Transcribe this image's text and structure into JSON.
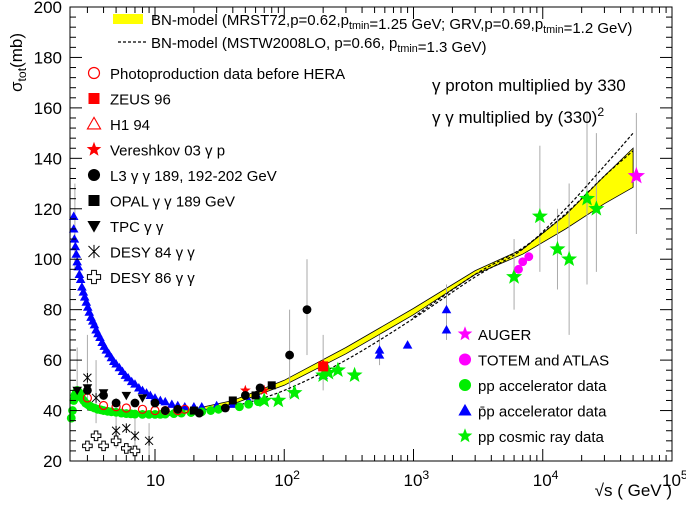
{
  "chart_data": {
    "type": "scatter",
    "xscale": "log",
    "xlim": [
      2.2,
      100000
    ],
    "ylim": [
      20,
      200
    ],
    "xlabel": "√s ( GeV )",
    "ylabel_parts": {
      "main": "σ",
      "sub": "tot",
      "tail": "(mb)"
    },
    "x_ticks": [
      {
        "value": 10,
        "base": "10",
        "exp": ""
      },
      {
        "value": 100,
        "base": "10",
        "exp": "2"
      },
      {
        "value": 1000,
        "base": "10",
        "exp": "3"
      },
      {
        "value": 10000,
        "base": "10",
        "exp": "4"
      },
      {
        "value": 100000,
        "base": "10",
        "exp": "5"
      }
    ],
    "y_ticks": [
      20,
      40,
      60,
      80,
      100,
      120,
      140,
      160,
      180,
      200
    ],
    "grid": false,
    "annotations": [
      {
        "key": "gamma_p",
        "text": "γ proton multiplied by 330"
      },
      {
        "key": "gamma_gamma",
        "prefix": "γ γ multiplied by (330)",
        "sup": "2"
      }
    ],
    "legend_top": [
      {
        "key": "band",
        "parts": [
          {
            "t": "BN-model (MRST72,p=0.62,p"
          },
          {
            "t": "tmin",
            "sub": true
          },
          {
            "t": "=1.25 GeV; GRV,p=0.69,p"
          },
          {
            "t": "tmin",
            "sub": true
          },
          {
            "t": "=1.2 GeV)"
          }
        ]
      },
      {
        "key": "dashed",
        "parts": [
          {
            "t": "BN-model (MSTW2008LO, p=0.66, p"
          },
          {
            "t": "tmin",
            "sub": true
          },
          {
            "t": "=1.3 GeV)"
          }
        ]
      }
    ],
    "legend_left": [
      {
        "marker": "circle-open",
        "color": "#ff0000",
        "label": "Photoproduction data before HERA"
      },
      {
        "marker": "square",
        "color": "#ff0000",
        "label": "ZEUS 96"
      },
      {
        "marker": "triangle-open",
        "color": "#ff0000",
        "label": "H1 94"
      },
      {
        "marker": "star",
        "color": "#ff0000",
        "label": "Vereshkov 03 γ p"
      },
      {
        "marker": "circle",
        "color": "#000000",
        "label": "L3 γ γ  189, 192-202 GeV"
      },
      {
        "marker": "square",
        "color": "#000000",
        "label": "OPAL γ γ 189 GeV"
      },
      {
        "marker": "triangle-down",
        "color": "#000000",
        "label": "TPC γ γ"
      },
      {
        "marker": "xcross",
        "color": "#000000",
        "label": "DESY 84 γ γ"
      },
      {
        "marker": "cross-open",
        "color": "#000000",
        "label": "DESY 86 γ γ"
      }
    ],
    "legend_right": [
      {
        "marker": "star",
        "color": "#ff00ff",
        "label": "AUGER"
      },
      {
        "marker": "circle",
        "color": "#ff00ff",
        "label": "TOTEM and ATLAS"
      },
      {
        "marker": "circle",
        "color": "#00ee00",
        "label": "pp accelerator data"
      },
      {
        "marker": "triangle",
        "color": "#0000ff",
        "label": "p̄p accelerator data"
      },
      {
        "marker": "star",
        "color": "#00ee00",
        "label": "pp cosmic ray data"
      }
    ],
    "series": [
      {
        "key": "band_low",
        "values": [
          [
            3,
            40.5
          ],
          [
            5,
            38.6
          ],
          [
            10,
            38.1
          ],
          [
            20,
            39.5
          ],
          [
            40,
            42.6
          ],
          [
            100,
            50
          ],
          [
            300,
            62.5
          ],
          [
            1000,
            78
          ],
          [
            3000,
            94
          ],
          [
            7000,
            102
          ],
          [
            15000,
            112
          ],
          [
            30000,
            122
          ],
          [
            50000,
            128.5
          ]
        ]
      },
      {
        "key": "band_high",
        "values": [
          [
            3,
            41.2
          ],
          [
            5,
            39.3
          ],
          [
            10,
            38.9
          ],
          [
            20,
            40.6
          ],
          [
            40,
            44
          ],
          [
            100,
            52
          ],
          [
            300,
            65
          ],
          [
            1000,
            80.5
          ],
          [
            3000,
            95.5
          ],
          [
            7000,
            104
          ],
          [
            15000,
            117.5
          ],
          [
            30000,
            133
          ],
          [
            50000,
            144
          ]
        ]
      },
      {
        "key": "mstw",
        "values": [
          [
            3,
            40.3
          ],
          [
            5,
            38.6
          ],
          [
            10,
            38
          ],
          [
            20,
            39
          ],
          [
            40,
            41.6
          ],
          [
            100,
            48
          ],
          [
            300,
            60
          ],
          [
            1000,
            76.5
          ],
          [
            3000,
            93
          ],
          [
            7000,
            104
          ],
          [
            15000,
            120
          ],
          [
            30000,
            137
          ],
          [
            50000,
            150
          ]
        ]
      },
      {
        "key": "mstw_b",
        "values": [
          [
            1000,
            77
          ],
          [
            3000,
            94
          ],
          [
            7000,
            104.5
          ],
          [
            15000,
            118
          ],
          [
            30000,
            133
          ],
          [
            50000,
            143
          ]
        ]
      },
      {
        "key": "ppbar",
        "marker": "triangle",
        "color": "#0000ff",
        "points": [
          [
            2.35,
            117
          ],
          [
            2.35,
            112
          ],
          [
            2.38,
            108
          ],
          [
            2.42,
            105
          ],
          [
            2.46,
            102
          ],
          [
            2.5,
            99
          ],
          [
            2.55,
            97
          ],
          [
            2.6,
            94
          ],
          [
            2.66,
            92
          ],
          [
            2.72,
            89
          ],
          [
            2.79,
            87
          ],
          [
            2.86,
            85
          ],
          [
            2.94,
            83
          ],
          [
            3.02,
            81
          ],
          [
            3.1,
            79
          ],
          [
            3.2,
            77
          ],
          [
            3.3,
            75.5
          ],
          [
            3.4,
            74
          ],
          [
            3.5,
            72
          ],
          [
            3.62,
            70.5
          ],
          [
            3.75,
            69
          ],
          [
            3.9,
            67
          ],
          [
            4.05,
            65.5
          ],
          [
            4.2,
            64
          ],
          [
            4.4,
            62.5
          ],
          [
            4.6,
            61
          ],
          [
            4.8,
            59.5
          ],
          [
            5.0,
            58.5
          ],
          [
            5.3,
            57
          ],
          [
            5.6,
            55.5
          ],
          [
            5.9,
            54
          ],
          [
            6.2,
            53
          ],
          [
            6.6,
            51.5
          ],
          [
            7.0,
            50.5
          ],
          [
            7.5,
            49
          ],
          [
            8.0,
            48
          ],
          [
            8.6,
            47
          ],
          [
            9.2,
            46
          ],
          [
            10,
            45
          ],
          [
            11,
            44
          ],
          [
            12,
            43.5
          ],
          [
            13.5,
            42.5
          ],
          [
            15,
            42
          ],
          [
            17,
            41.5
          ],
          [
            20,
            41.5
          ],
          [
            23,
            41.5
          ],
          [
            30,
            42
          ],
          [
            40,
            42.5
          ],
          [
            53,
            44
          ],
          [
            63,
            45
          ],
          [
            200,
            54
          ],
          [
            546,
            62
          ],
          [
            546,
            64
          ],
          [
            900,
            66
          ],
          [
            1800,
            80
          ],
          [
            1800,
            72
          ]
        ]
      },
      {
        "key": "pp_acc",
        "marker": "circle",
        "color": "#00ee00",
        "points": [
          [
            2.25,
            37
          ],
          [
            2.3,
            40
          ],
          [
            2.35,
            44
          ],
          [
            2.4,
            46
          ],
          [
            2.45,
            47
          ],
          [
            2.5,
            48
          ],
          [
            2.55,
            47.5
          ],
          [
            2.6,
            47
          ],
          [
            2.65,
            46
          ],
          [
            2.7,
            45
          ],
          [
            2.8,
            44
          ],
          [
            2.9,
            43
          ],
          [
            3.0,
            42.5
          ],
          [
            3.1,
            42
          ],
          [
            3.2,
            41.5
          ],
          [
            3.4,
            41
          ],
          [
            3.6,
            40.5
          ],
          [
            3.8,
            40.3
          ],
          [
            4.0,
            40
          ],
          [
            4.3,
            39.7
          ],
          [
            4.6,
            39.5
          ],
          [
            5.0,
            39.3
          ],
          [
            5.5,
            39
          ],
          [
            6.0,
            38.8
          ],
          [
            6.5,
            38.7
          ],
          [
            7.0,
            38.6
          ],
          [
            8.0,
            38.5
          ],
          [
            9.0,
            38.5
          ],
          [
            10,
            38.5
          ],
          [
            11,
            38.5
          ],
          [
            12,
            38.6
          ],
          [
            14,
            38.8
          ],
          [
            16,
            39
          ],
          [
            19,
            39.2
          ],
          [
            23,
            39.5
          ],
          [
            27,
            40
          ],
          [
            31,
            40.5
          ],
          [
            45,
            41.5
          ],
          [
            53,
            42.5
          ],
          [
            63,
            43.5
          ]
        ]
      },
      {
        "key": "pp_cosmic",
        "marker": "star",
        "color": "#00ee00",
        "points": [
          [
            70,
            44
          ],
          [
            90,
            44
          ],
          [
            120,
            47
          ],
          [
            200,
            54
          ],
          [
            220,
            55
          ],
          [
            260,
            56
          ],
          [
            350,
            54
          ],
          [
            6000,
            93
          ],
          [
            9500,
            117
          ],
          [
            13000,
            104
          ],
          [
            16000,
            100
          ],
          [
            22000,
            124
          ],
          [
            26000,
            120
          ]
        ]
      },
      {
        "key": "totem",
        "marker": "circle",
        "color": "#ff00ff",
        "points": [
          [
            6500,
            96
          ],
          [
            7000,
            99
          ],
          [
            7800,
            101
          ]
        ]
      },
      {
        "key": "auger",
        "marker": "star",
        "color": "#ff00ff",
        "points": [
          [
            53000,
            133
          ]
        ]
      },
      {
        "key": "zeus",
        "marker": "square",
        "color": "#ff0000",
        "points": [
          [
            200,
            57.5
          ]
        ]
      },
      {
        "key": "h1",
        "marker": "triangle-open",
        "color": "#ff0000",
        "points": [
          [
            200,
            58
          ]
        ]
      },
      {
        "key": "photo_pre",
        "marker": "circle-open",
        "color": "#ff0000",
        "points": [
          [
            3,
            45
          ],
          [
            4,
            42
          ],
          [
            5,
            41.5
          ],
          [
            6,
            41
          ],
          [
            8,
            40.5
          ],
          [
            10,
            40
          ],
          [
            12,
            40
          ],
          [
            15,
            40
          ],
          [
            17,
            40.5
          ]
        ]
      },
      {
        "key": "vereshkov",
        "marker": "star",
        "color": "#ff0000",
        "points": [
          [
            50,
            48
          ],
          [
            70,
            48
          ]
        ]
      },
      {
        "key": "l3",
        "marker": "circle",
        "color": "#000000",
        "points": [
          [
            3,
            48
          ],
          [
            4,
            46
          ],
          [
            5,
            43
          ],
          [
            7,
            43
          ],
          [
            10,
            43
          ],
          [
            12,
            40
          ],
          [
            15,
            40.5
          ],
          [
            22,
            39
          ],
          [
            35,
            41
          ],
          [
            50,
            46
          ],
          [
            65,
            49
          ],
          [
            110,
            62
          ],
          [
            150,
            80
          ]
        ]
      },
      {
        "key": "opal",
        "marker": "square",
        "color": "#000000",
        "points": [
          [
            20,
            40
          ],
          [
            40,
            44
          ],
          [
            60,
            46
          ],
          [
            80,
            50
          ]
        ]
      },
      {
        "key": "tpc",
        "marker": "triangle-down",
        "color": "#000000",
        "points": [
          [
            2.5,
            48
          ],
          [
            3,
            49
          ],
          [
            4,
            47
          ],
          [
            6,
            46
          ],
          [
            8,
            45
          ]
        ]
      },
      {
        "key": "desy84",
        "marker": "xcross",
        "color": "#000000",
        "points": [
          [
            3,
            53
          ],
          [
            3.5,
            45
          ],
          [
            5,
            32
          ],
          [
            6,
            33
          ],
          [
            7,
            30
          ],
          [
            9,
            28
          ]
        ]
      },
      {
        "key": "desy86",
        "marker": "cross-open",
        "color": "#000000",
        "points": [
          [
            3,
            26
          ],
          [
            3.5,
            30
          ],
          [
            4,
            26
          ],
          [
            5,
            28
          ],
          [
            6,
            25
          ],
          [
            7,
            24
          ]
        ]
      }
    ],
    "errorbars": [
      [
        2.4,
        96,
        130
      ],
      [
        2.5,
        45,
        65
      ],
      [
        3,
        40,
        70
      ],
      [
        3.5,
        35,
        60
      ],
      [
        5,
        25,
        45
      ],
      [
        7,
        22,
        40
      ],
      [
        9,
        20,
        35
      ],
      [
        110,
        45,
        80
      ],
      [
        150,
        62,
        100
      ],
      [
        200,
        48,
        70
      ],
      [
        546,
        58,
        70
      ],
      [
        1800,
        68,
        90
      ],
      [
        6000,
        80,
        108
      ],
      [
        9500,
        95,
        145
      ],
      [
        13000,
        88,
        120
      ],
      [
        16000,
        70,
        130
      ],
      [
        22000,
        90,
        158
      ],
      [
        26000,
        95,
        150
      ],
      [
        53000,
        110,
        158
      ]
    ]
  }
}
